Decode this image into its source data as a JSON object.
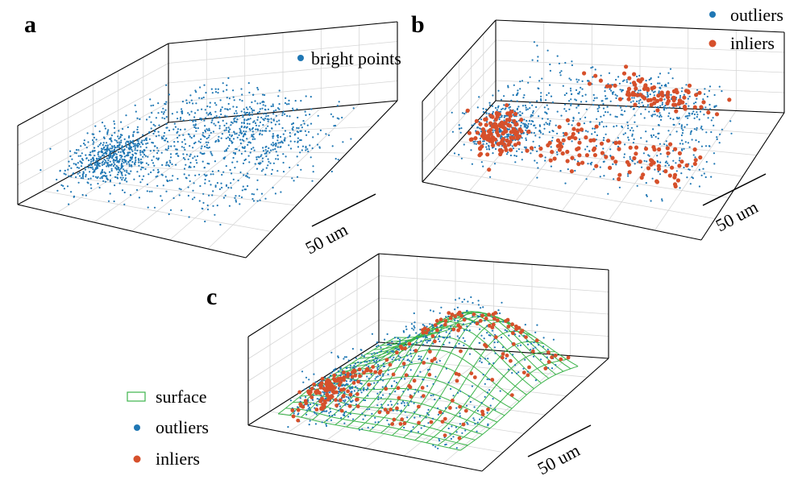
{
  "panels": [
    {
      "letter": "a",
      "legend": [
        {
          "label": "bright points",
          "color": "#1f77b4",
          "marker": "dot"
        }
      ],
      "scale_bar": "50 um"
    },
    {
      "letter": "b",
      "legend": [
        {
          "label": "outliers",
          "color": "#1f77b4",
          "marker": "dot"
        },
        {
          "label": "inliers",
          "color": "#d6502b",
          "marker": "dot"
        }
      ],
      "scale_bar": "50 um"
    },
    {
      "letter": "c",
      "legend": [
        {
          "label": "surface",
          "color": "#3cb44b",
          "marker": "box"
        },
        {
          "label": "outliers",
          "color": "#1f77b4",
          "marker": "dot"
        },
        {
          "label": "inliers",
          "color": "#d6502b",
          "marker": "dot"
        }
      ],
      "scale_bar": "50 um"
    }
  ],
  "chart_data": [
    {
      "type": "scatter",
      "panel": "a",
      "projection": "3d",
      "series": [
        {
          "name": "bright points",
          "color": "#1f77b4",
          "point_count": 1400
        }
      ],
      "grid": true,
      "legend_position": "top-right",
      "scale_bar_label": "50 um"
    },
    {
      "type": "scatter",
      "panel": "b",
      "projection": "3d",
      "series": [
        {
          "name": "outliers",
          "color": "#1f77b4",
          "point_count": 1000
        },
        {
          "name": "inliers",
          "color": "#d6502b",
          "point_count": 300
        }
      ],
      "grid": true,
      "legend_position": "top-right",
      "scale_bar_label": "50 um"
    },
    {
      "type": "scatter",
      "panel": "c",
      "projection": "3d",
      "series": [
        {
          "name": "surface",
          "color": "#3cb44b",
          "kind": "wireframe"
        },
        {
          "name": "outliers",
          "color": "#1f77b4",
          "point_count": 800
        },
        {
          "name": "inliers",
          "color": "#d6502b",
          "point_count": 250
        }
      ],
      "grid": true,
      "legend_position": "bottom-left",
      "scale_bar_label": "50 um"
    }
  ]
}
